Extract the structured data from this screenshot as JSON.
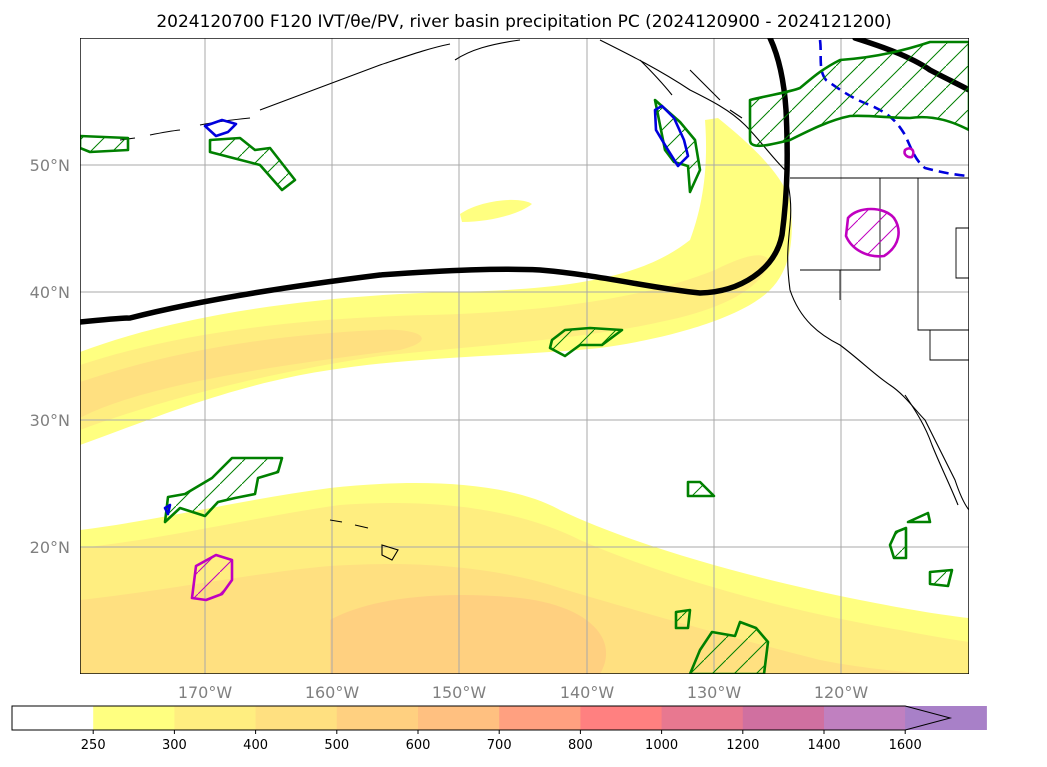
{
  "title": "2024120700 F120 IVT/θe/PV, river basin precipitation PC (2024120900 - 2024121200)",
  "map": {
    "lon_labels": [
      "170°W",
      "160°W",
      "150°W",
      "140°W",
      "130°W",
      "120°W"
    ],
    "lat_labels": [
      "50°N",
      "40°N",
      "30°N",
      "20°N"
    ],
    "lon_extent": [
      -180,
      -110
    ],
    "lat_extent": [
      10,
      60
    ],
    "gridlines": true,
    "fields": [
      {
        "name": "IVT",
        "kind": "filled contours",
        "units_scale": "colorbar"
      },
      {
        "name": "theta-e",
        "kind": "black contour line"
      },
      {
        "name": "PV",
        "kind": "hatched contour outlines",
        "colors": [
          "#008000",
          "#0000dd",
          "#c000c0"
        ]
      }
    ]
  },
  "colorbar": {
    "levels": [
      "250",
      "300",
      "400",
      "500",
      "600",
      "700",
      "800",
      "1000",
      "1200",
      "1400",
      "1600"
    ],
    "colors": [
      "#ffffff",
      "#ffff80",
      "#ffee80",
      "#ffe080",
      "#ffd080",
      "#ffc080",
      "#ffa080",
      "#ff8080",
      "#e87890",
      "#d070a0",
      "#c080c0",
      "#a880c8"
    ],
    "extend": "max"
  }
}
